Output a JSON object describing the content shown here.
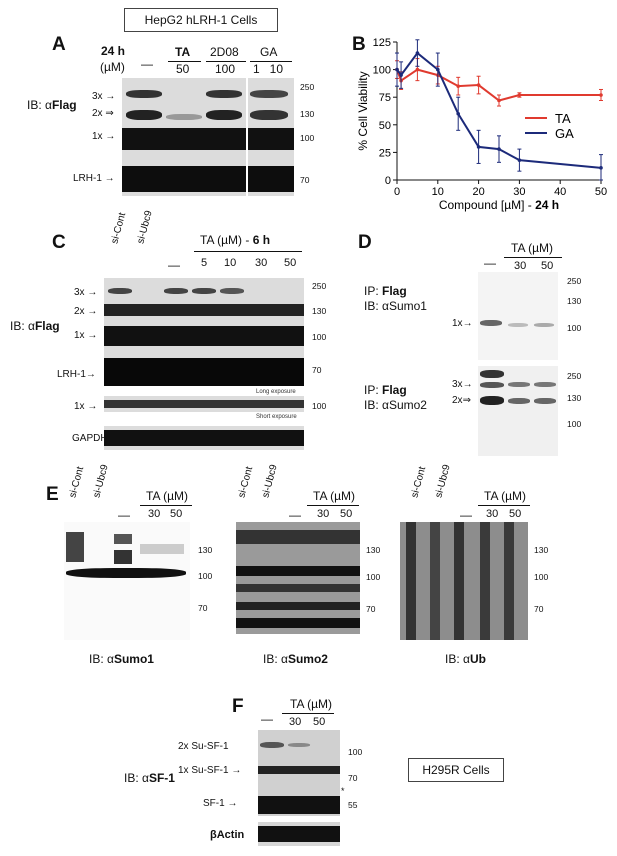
{
  "header": {
    "title": "HepG2 hLRH-1 Cells"
  },
  "panelA": {
    "letter": "A",
    "time": "24 h",
    "unit": "(µM)",
    "dash": "—",
    "groups": [
      {
        "name": "TA",
        "dose": "50"
      },
      {
        "name": "2D08",
        "dose": "100"
      },
      {
        "name": "GA",
        "dose": "1   10"
      }
    ],
    "ib_prefix": "IB: ",
    "ib_alpha": "α",
    "ib_target": "Flag",
    "bands": [
      "3x",
      "2x",
      "1x",
      "LRH-1"
    ],
    "mw": [
      "250",
      "130",
      "100",
      "70"
    ]
  },
  "panelB": {
    "letter": "B",
    "chart_data": {
      "type": "line",
      "xlabel": "Compound [µM] - 24 h",
      "ylabel": "% Cell Viability",
      "xlim": [
        0,
        50
      ],
      "ylim": [
        0,
        125
      ],
      "xticks": [
        "0",
        "10",
        "20",
        "30",
        "40",
        "50"
      ],
      "yticks": [
        "0",
        "25",
        "50",
        "75",
        "100",
        "125"
      ],
      "legend_position": "right",
      "series": [
        {
          "name": "TA",
          "color": "#e03a2f",
          "x": [
            0,
            1,
            5,
            10,
            15,
            20,
            25,
            30,
            50
          ],
          "y": [
            100,
            90,
            100,
            95,
            85,
            86,
            72,
            77,
            77
          ],
          "err": [
            8,
            8,
            10,
            8,
            8,
            8,
            5,
            2,
            5
          ]
        },
        {
          "name": "GA",
          "color": "#1c2a7a",
          "x": [
            0,
            1,
            5,
            10,
            15,
            20,
            25,
            30,
            50
          ],
          "y": [
            100,
            95,
            115,
            100,
            60,
            30,
            28,
            18,
            11
          ],
          "err": [
            15,
            12,
            12,
            15,
            15,
            15,
            12,
            10,
            12
          ]
        }
      ]
    }
  },
  "panelC": {
    "letter": "C",
    "lanes_left": [
      "si-Cont",
      "si-Ubc9"
    ],
    "dash": "—",
    "condition": "TA (µM) - ",
    "condition_time": "6 h",
    "doses": [
      "5",
      "10",
      "30",
      "50"
    ],
    "ib_prefix": "IB: ",
    "ib_alpha": "α",
    "ib_target": "Flag",
    "bands": [
      "3x",
      "2x",
      "1x",
      "LRH-1",
      "1x"
    ],
    "mw": [
      "250",
      "130",
      "100",
      "70",
      "100"
    ],
    "long_exposure": "Long exposure",
    "short_exposure": "Short exposure",
    "gapdh": "GAPDH"
  },
  "panelD": {
    "letter": "D",
    "dash": "—",
    "condition": "TA (µM)",
    "doses": [
      "30",
      "50"
    ],
    "ip_prefix": "IP: ",
    "ip_target": "Flag",
    "ib_prefix": "IB: ",
    "ib_alpha": "α",
    "ib1_target": "Sumo1",
    "ib2_target": "Sumo2",
    "bands_top": [
      "1x"
    ],
    "bands_bottom": [
      "3x",
      "2x"
    ],
    "mw_top": [
      "250",
      "130",
      "100"
    ],
    "mw_bottom": [
      "250",
      "130",
      "100"
    ]
  },
  "panelE": {
    "letter": "E",
    "lanes": [
      "si-Cont",
      "si-Ubc9"
    ],
    "dash": "—",
    "condition": "TA (µM)",
    "doses": [
      "30",
      "50"
    ],
    "mw": [
      "130",
      "100",
      "70"
    ],
    "ib_prefix": "IB: ",
    "ib_alpha": "α",
    "ib_targets": [
      "Sumo1",
      "Sumo2",
      "Ub"
    ]
  },
  "panelF": {
    "letter": "F",
    "dash": "—",
    "condition": "TA (µM)",
    "doses": [
      "30",
      "50"
    ],
    "ib_prefix": "IB: ",
    "ib_alpha": "α",
    "ib_target": "SF-1",
    "bands": [
      "2x Su-SF-1",
      "1x Su-SF-1",
      "SF-1"
    ],
    "mw": [
      "100",
      "70",
      "55"
    ],
    "asterisk": "*",
    "actin": "βActin",
    "cell_box": "H295R Cells"
  }
}
